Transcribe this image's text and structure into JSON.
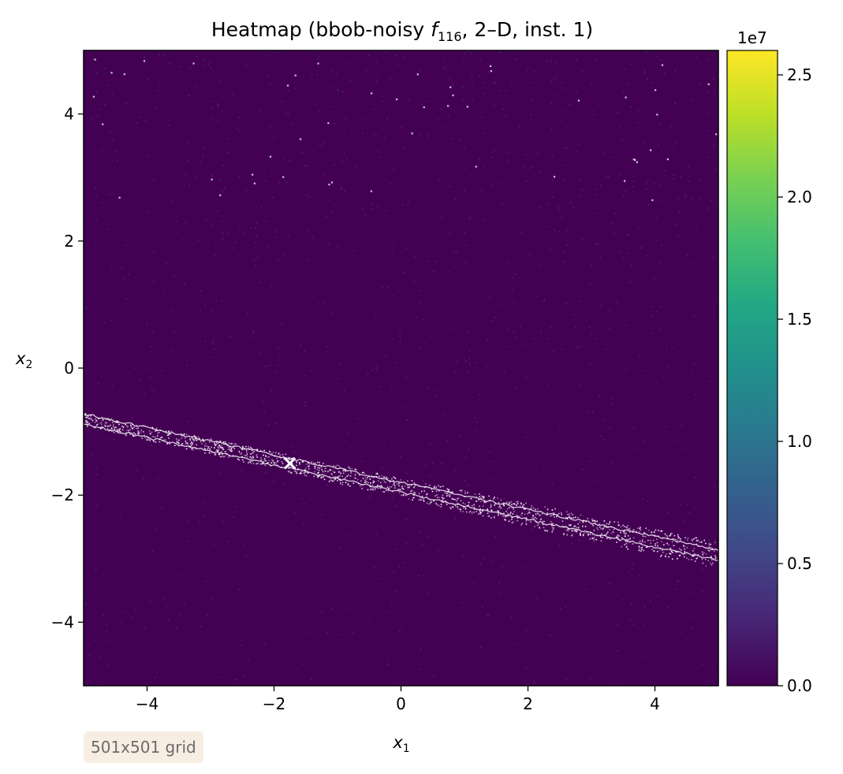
{
  "chart_data": {
    "type": "heatmap",
    "title": {
      "prefix": "Heatmap (bbob-noisy ",
      "func_symbol": "f",
      "func_subscript": "116",
      "suffix": ", 2–D, inst. 1)"
    },
    "xlabel": {
      "symbol": "x",
      "subscript": "1"
    },
    "ylabel": {
      "symbol": "x",
      "subscript": "2"
    },
    "xlim": [
      -5,
      5
    ],
    "ylim": [
      -5,
      5
    ],
    "xticks": [
      -4,
      -2,
      0,
      2,
      4
    ],
    "yticks": [
      -4,
      -2,
      0,
      2,
      4
    ],
    "xtick_labels": [
      "−4",
      "−2",
      "0",
      "2",
      "4"
    ],
    "ytick_labels": [
      "−4",
      "−2",
      "0",
      "2",
      "4"
    ],
    "colorbar": {
      "colormap": "viridis",
      "range": [
        0,
        2.6
      ],
      "ticks": [
        0.0,
        0.5,
        1.0,
        1.5,
        2.0,
        2.5
      ],
      "tick_labels": [
        "0.0",
        "0.5",
        "1.0",
        "1.5",
        "2.0",
        "2.5"
      ],
      "multiplier_label": "1e7"
    },
    "background_value": 0.0,
    "valley": {
      "description_points": [
        [
          -5,
          -0.8
        ],
        [
          -1.75,
          -1.5
        ],
        [
          5,
          -2.95
        ]
      ],
      "band_offsets": [
        -0.08,
        0.08
      ]
    },
    "optimum_marker": {
      "x": -1.75,
      "y": -1.5,
      "symbol": "×"
    },
    "grid_note": "501x501 grid",
    "colors": {
      "background_low": "#440154",
      "valley": "#ffffff",
      "badge_background": "#f8ede2"
    }
  }
}
